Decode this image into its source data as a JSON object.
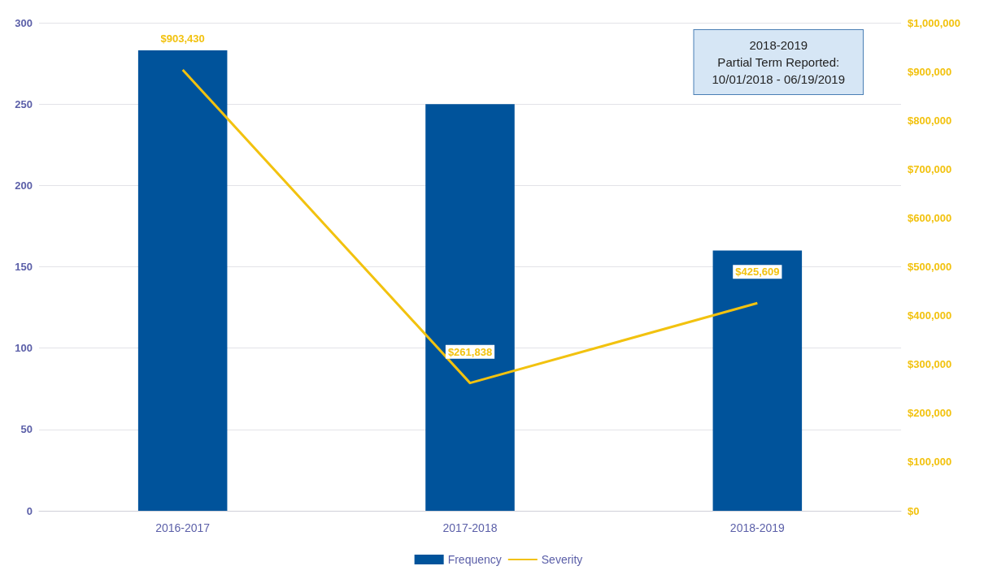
{
  "chart_data": {
    "type": "bar",
    "categories": [
      "2016-2017",
      "2017-2018",
      "2018-2019"
    ],
    "series": [
      {
        "name": "Frequency",
        "color": "#00539b",
        "values": [
          283,
          250,
          160
        ]
      },
      {
        "name": "Severity",
        "type": "line",
        "axis": "y2",
        "color": "#f2c20f",
        "marker": "none",
        "values": [
          903430,
          261838,
          425609
        ],
        "value_labels": [
          "$903,430",
          "$261,838",
          "$425,609"
        ]
      }
    ],
    "ylim": [
      0,
      300
    ],
    "yticks": [
      0,
      50,
      100,
      150,
      200,
      250,
      300
    ],
    "y2lim": [
      0,
      1000000
    ],
    "y2ticks": [
      {
        "value": 0,
        "label": "$0"
      },
      {
        "value": 100000,
        "label": "$100,000"
      },
      {
        "value": 200000,
        "label": "$200,000"
      },
      {
        "value": 300000,
        "label": "$300,000"
      },
      {
        "value": 400000,
        "label": "$400,000"
      },
      {
        "value": 500000,
        "label": "$500,000"
      },
      {
        "value": 600000,
        "label": "$600,000"
      },
      {
        "value": 700000,
        "label": "$700,000"
      },
      {
        "value": 800000,
        "label": "$800,000"
      },
      {
        "value": 900000,
        "label": "$900,000"
      },
      {
        "value": 1000000,
        "label": "$1,000,000"
      }
    ],
    "grid": "y",
    "legend": "bottom",
    "annotations": [
      "2018-2019\nPartial Term Reported:\n10/01/2018 - 06/19/2019"
    ]
  }
}
